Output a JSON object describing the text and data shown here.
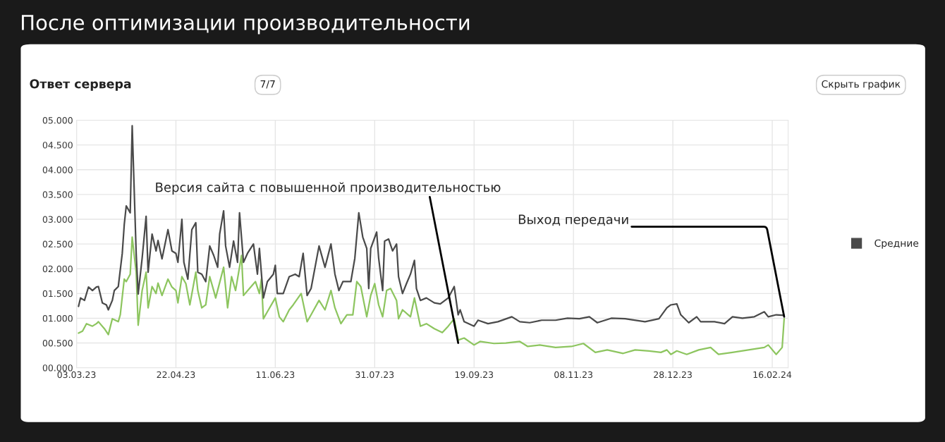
{
  "chart_data": {
    "type": "line",
    "title": "После оптимизации производительности",
    "subtitle": "Ответ сервера",
    "xlim": [
      "2023-03-03",
      "2024-02-24"
    ],
    "xticks": [
      {
        "value": "2023-03-03",
        "label": "03.03.23"
      },
      {
        "value": "2023-04-22",
        "label": "22.04.23"
      },
      {
        "value": "2023-06-11",
        "label": "11.06.23"
      },
      {
        "value": "2023-07-31",
        "label": "31.07.23"
      },
      {
        "value": "2023-09-19",
        "label": "19.09.23"
      },
      {
        "value": "2023-11-08",
        "label": "08.11.23"
      },
      {
        "value": "2023-12-28",
        "label": "28.12.23"
      },
      {
        "value": "2024-02-16",
        "label": "16.02.24"
      }
    ],
    "ylim": [
      0,
      5
    ],
    "yticks": [
      {
        "value": 0,
        "label": "00.000"
      },
      {
        "value": 0.5,
        "label": "00.500"
      },
      {
        "value": 1,
        "label": "01.000"
      },
      {
        "value": 1.5,
        "label": "01.500"
      },
      {
        "value": 2,
        "label": "02.000"
      },
      {
        "value": 2.5,
        "label": "02.500"
      },
      {
        "value": 3,
        "label": "03.000"
      },
      {
        "value": 3.5,
        "label": "03.500"
      },
      {
        "value": 4,
        "label": "04.000"
      },
      {
        "value": 4.5,
        "label": "04.500"
      },
      {
        "value": 5,
        "label": "05.000"
      }
    ],
    "grid": true,
    "legend": "right",
    "series": [
      {
        "color": "#8dc55f",
        "x": [
          "2023-03-04",
          "2023-03-06",
          "2023-03-08",
          "2023-03-11",
          "2023-03-13",
          "2023-03-14",
          "2023-03-17",
          "2023-03-19",
          "2023-03-21",
          "2023-03-24",
          "2023-03-25",
          "2023-03-27",
          "2023-03-28",
          "2023-03-30",
          "2023-03-31",
          "2023-04-02",
          "2023-04-03",
          "2023-04-05",
          "2023-04-07",
          "2023-04-08",
          "2023-04-10",
          "2023-04-12",
          "2023-04-13",
          "2023-04-15",
          "2023-04-18",
          "2023-04-20",
          "2023-04-22",
          "2023-04-23",
          "2023-04-25",
          "2023-04-27",
          "2023-04-29",
          "2023-05-02",
          "2023-05-03",
          "2023-05-05",
          "2023-05-07",
          "2023-05-09",
          "2023-05-11",
          "2023-05-12",
          "2023-05-16",
          "2023-05-18",
          "2023-05-20",
          "2023-05-22",
          "2023-05-25",
          "2023-05-26",
          "2023-05-29",
          "2023-06-01",
          "2023-06-03",
          "2023-06-04",
          "2023-06-05",
          "2023-06-07",
          "2023-06-11",
          "2023-06-13",
          "2023-06-15",
          "2023-06-18",
          "2023-06-20",
          "2023-06-24",
          "2023-06-27",
          "2023-06-29",
          "2023-07-03",
          "2023-07-06",
          "2023-07-09",
          "2023-07-11",
          "2023-07-14",
          "2023-07-17",
          "2023-07-20",
          "2023-07-22",
          "2023-07-24",
          "2023-07-27",
          "2023-07-29",
          "2023-07-31",
          "2023-08-02",
          "2023-08-04",
          "2023-08-06",
          "2023-08-08",
          "2023-08-11",
          "2023-08-12",
          "2023-08-14",
          "2023-08-18",
          "2023-08-20",
          "2023-08-23",
          "2023-08-26",
          "2023-08-30",
          "2023-09-03",
          "2023-09-06",
          "2023-09-09",
          "2023-09-11",
          "2023-09-14",
          "2023-09-19",
          "2023-09-22",
          "2023-09-29",
          "2023-10-05",
          "2023-10-12",
          "2023-10-16",
          "2023-10-22",
          "2023-10-30",
          "2023-11-07",
          "2023-11-13",
          "2023-11-19",
          "2023-11-25",
          "2023-12-03",
          "2023-12-09",
          "2023-12-16",
          "2023-12-22",
          "2023-12-25",
          "2023-12-27",
          "2023-12-30",
          "2024-01-04",
          "2024-01-10",
          "2024-01-16",
          "2024-01-20",
          "2024-01-27",
          "2024-02-04",
          "2024-02-12",
          "2024-02-14",
          "2024-02-18",
          "2024-02-21",
          "2024-02-22"
        ],
        "values": [
          0.7,
          0.74,
          0.89,
          0.84,
          0.89,
          0.93,
          0.79,
          0.67,
          0.99,
          0.93,
          1.07,
          1.79,
          1.74,
          1.89,
          2.64,
          1.93,
          0.86,
          1.56,
          1.93,
          1.21,
          1.64,
          1.5,
          1.71,
          1.46,
          1.79,
          1.63,
          1.56,
          1.31,
          1.84,
          1.7,
          1.27,
          1.93,
          1.56,
          1.21,
          1.27,
          1.84,
          1.56,
          1.41,
          2.03,
          1.21,
          1.84,
          1.56,
          2.27,
          1.46,
          1.6,
          1.74,
          1.5,
          1.79,
          0.99,
          1.13,
          1.41,
          1.03,
          0.93,
          1.17,
          1.27,
          1.5,
          0.93,
          1.07,
          1.36,
          1.17,
          1.56,
          1.21,
          0.89,
          1.07,
          1.07,
          1.74,
          1.64,
          1.03,
          1.46,
          1.7,
          1.27,
          1.03,
          1.56,
          1.6,
          1.36,
          0.99,
          1.17,
          1.03,
          1.41,
          0.84,
          0.89,
          0.79,
          0.71,
          0.84,
          0.99,
          0.56,
          0.6,
          0.46,
          0.53,
          0.49,
          0.5,
          0.53,
          0.43,
          0.46,
          0.41,
          0.43,
          0.49,
          0.31,
          0.36,
          0.29,
          0.36,
          0.34,
          0.31,
          0.36,
          0.27,
          0.34,
          0.27,
          0.36,
          0.41,
          0.27,
          0.31,
          0.36,
          0.41,
          0.46,
          0.27,
          0.41,
          0.99
        ]
      },
      {
        "name": "Средние",
        "color": "#4a4a4a",
        "x": [
          "2023-03-04",
          "2023-03-05",
          "2023-03-07",
          "2023-03-09",
          "2023-03-11",
          "2023-03-13",
          "2023-03-14",
          "2023-03-16",
          "2023-03-18",
          "2023-03-19",
          "2023-03-21",
          "2023-03-22",
          "2023-03-24",
          "2023-03-26",
          "2023-03-27",
          "2023-03-28",
          "2023-03-30",
          "2023-03-31",
          "2023-04-02",
          "2023-04-03",
          "2023-04-05",
          "2023-04-07",
          "2023-04-08",
          "2023-04-10",
          "2023-04-12",
          "2023-04-13",
          "2023-04-15",
          "2023-04-18",
          "2023-04-20",
          "2023-04-22",
          "2023-04-23",
          "2023-04-25",
          "2023-04-26",
          "2023-04-28",
          "2023-04-30",
          "2023-05-02",
          "2023-05-03",
          "2023-05-05",
          "2023-05-07",
          "2023-05-09",
          "2023-05-11",
          "2023-05-13",
          "2023-05-14",
          "2023-05-16",
          "2023-05-17",
          "2023-05-19",
          "2023-05-21",
          "2023-05-23",
          "2023-05-24",
          "2023-05-26",
          "2023-05-28",
          "2023-05-31",
          "2023-06-02",
          "2023-06-03",
          "2023-06-05",
          "2023-06-07",
          "2023-06-10",
          "2023-06-11",
          "2023-06-12",
          "2023-06-15",
          "2023-06-18",
          "2023-06-21",
          "2023-06-23",
          "2023-06-25",
          "2023-06-27",
          "2023-06-29",
          "2023-07-03",
          "2023-07-06",
          "2023-07-09",
          "2023-07-11",
          "2023-07-13",
          "2023-07-15",
          "2023-07-19",
          "2023-07-21",
          "2023-07-23",
          "2023-07-25",
          "2023-07-27",
          "2023-07-28",
          "2023-07-29",
          "2023-08-01",
          "2023-08-02",
          "2023-08-04",
          "2023-08-05",
          "2023-08-07",
          "2023-08-09",
          "2023-08-11",
          "2023-08-12",
          "2023-08-14",
          "2023-08-16",
          "2023-08-18",
          "2023-08-20",
          "2023-08-21",
          "2023-08-23",
          "2023-08-26",
          "2023-08-30",
          "2023-09-02",
          "2023-09-06",
          "2023-09-09",
          "2023-09-11",
          "2023-09-12",
          "2023-09-14",
          "2023-09-19",
          "2023-09-21",
          "2023-09-26",
          "2023-10-01",
          "2023-10-08",
          "2023-10-12",
          "2023-10-17",
          "2023-10-23",
          "2023-10-30",
          "2023-11-05",
          "2023-11-11",
          "2023-11-16",
          "2023-11-20",
          "2023-11-27",
          "2023-12-04",
          "2023-12-14",
          "2023-12-21",
          "2023-12-25",
          "2023-12-27",
          "2023-12-30",
          "2024-01-01",
          "2024-01-05",
          "2024-01-09",
          "2024-01-11",
          "2024-01-18",
          "2024-01-23",
          "2024-01-27",
          "2024-02-01",
          "2024-02-07",
          "2024-02-12",
          "2024-02-14",
          "2024-02-18",
          "2024-02-21",
          "2024-02-22"
        ],
        "values": [
          1.24,
          1.41,
          1.36,
          1.63,
          1.56,
          1.63,
          1.64,
          1.31,
          1.27,
          1.17,
          1.36,
          1.56,
          1.64,
          2.31,
          2.89,
          3.27,
          3.13,
          4.89,
          2.31,
          1.49,
          2.21,
          3.06,
          1.93,
          2.7,
          2.36,
          2.57,
          2.2,
          2.79,
          2.36,
          2.31,
          2.13,
          3.0,
          2.13,
          1.79,
          2.79,
          2.93,
          1.93,
          1.89,
          1.74,
          2.46,
          2.27,
          2.03,
          2.7,
          3.17,
          2.46,
          2.03,
          2.56,
          2.13,
          3.13,
          2.13,
          2.31,
          2.5,
          1.89,
          2.41,
          1.41,
          1.74,
          1.89,
          2.07,
          1.5,
          1.5,
          1.84,
          1.89,
          1.84,
          2.31,
          1.46,
          1.6,
          2.46,
          2.03,
          2.5,
          1.89,
          1.56,
          1.74,
          1.74,
          2.21,
          3.13,
          2.64,
          2.41,
          1.6,
          2.41,
          2.74,
          2.21,
          1.56,
          2.56,
          2.6,
          2.36,
          2.5,
          1.84,
          1.5,
          1.7,
          1.89,
          2.17,
          1.6,
          1.36,
          1.41,
          1.31,
          1.29,
          1.41,
          1.64,
          1.07,
          1.17,
          0.93,
          0.84,
          0.96,
          0.89,
          0.93,
          1.03,
          0.93,
          0.91,
          0.96,
          0.96,
          1.0,
          0.99,
          1.03,
          0.91,
          1.0,
          0.99,
          0.93,
          0.99,
          1.21,
          1.27,
          1.29,
          1.07,
          0.91,
          1.03,
          0.93,
          0.93,
          0.89,
          1.03,
          1.0,
          1.03,
          1.13,
          1.03,
          1.07,
          1.06,
          1.06
        ]
      }
    ],
    "annotations": [
      {
        "text": "Версия сайта с повышенной производительностью",
        "x": "2023-09-11",
        "y": 0.5
      },
      {
        "text": "Выход передачи",
        "x": "2024-02-22",
        "y": 1.03
      },
      "7/7",
      "Скрыть график"
    ]
  }
}
